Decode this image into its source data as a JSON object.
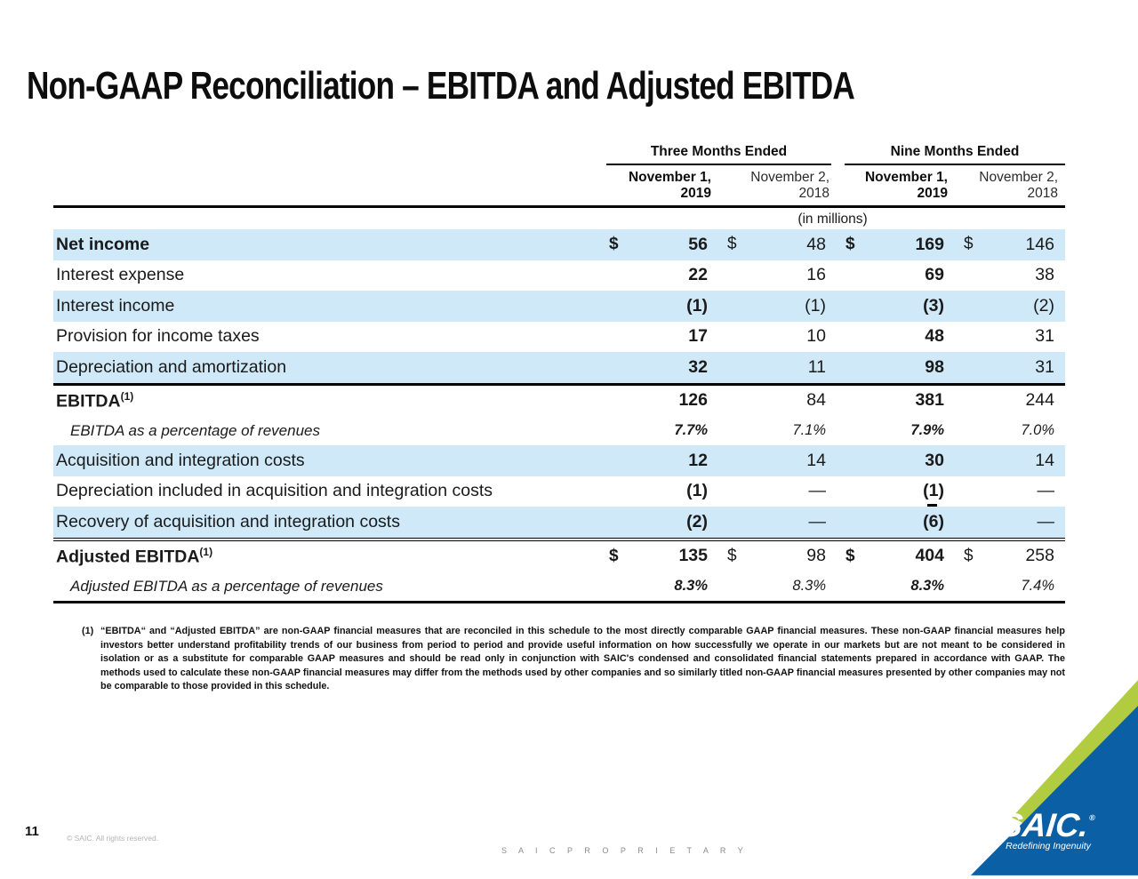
{
  "title": "Non-GAAP Reconciliation – EBITDA and Adjusted EBITDA",
  "table": {
    "group_headers": [
      "Three Months Ended",
      "Nine Months Ended"
    ],
    "col_headers": [
      {
        "line1": "November 1,",
        "line2": "2019",
        "bold": true
      },
      {
        "line1": "November 2,",
        "line2": "2018",
        "bold": false
      },
      {
        "line1": "November 1,",
        "line2": "2019",
        "bold": true
      },
      {
        "line1": "November 2,",
        "line2": "2018",
        "bold": false
      }
    ],
    "units_note": "(in millions)",
    "rows": [
      {
        "label": "Net income",
        "bold": true,
        "shade": true,
        "cells": [
          "$",
          "56",
          "$",
          "48",
          "$",
          "169",
          "$",
          "146"
        ]
      },
      {
        "label": "Interest expense",
        "cells": [
          "",
          "22",
          "",
          "16",
          "",
          "69",
          "",
          "38"
        ]
      },
      {
        "label": "Interest income",
        "shade": true,
        "cells": [
          "",
          "(1)",
          "",
          "(1)",
          "",
          "(3)",
          "",
          "(2)"
        ]
      },
      {
        "label": "Provision for income taxes",
        "cells": [
          "",
          "17",
          "",
          "10",
          "",
          "48",
          "",
          "31"
        ]
      },
      {
        "label": "Depreciation and amortization",
        "shade": true,
        "cells": [
          "",
          "32",
          "",
          "11",
          "",
          "98",
          "",
          "31"
        ]
      },
      {
        "label": "EBITDA",
        "sup": "(1)",
        "bold": true,
        "rule_above": "thick",
        "cells": [
          "",
          "126",
          "",
          "84",
          "",
          "381",
          "",
          "244"
        ]
      },
      {
        "label": "EBITDA as a percentage of revenues",
        "italic": true,
        "cells": [
          "",
          "7.7%",
          "",
          "7.1%",
          "",
          "7.9%",
          "",
          "7.0%"
        ]
      },
      {
        "label": "Acquisition and integration costs",
        "shade": true,
        "cells": [
          "",
          "12",
          "",
          "14",
          "",
          "30",
          "",
          "14"
        ]
      },
      {
        "label": "Depreciation included in acquisition and integration costs",
        "artifact": true,
        "cells": [
          "",
          "(1)",
          "",
          "—",
          "",
          "(1)",
          "",
          "—"
        ]
      },
      {
        "label": "Recovery of acquisition and integration costs",
        "shade": true,
        "cells": [
          "",
          "(2)",
          "",
          "—",
          "",
          "(6)",
          "",
          "—"
        ]
      },
      {
        "label": "Adjusted EBITDA",
        "sup": "(1)",
        "bold": true,
        "rule_above": "double",
        "cells": [
          "$",
          "135",
          "$",
          "98",
          "$",
          "404",
          "$",
          "258"
        ]
      },
      {
        "label": "Adjusted EBITDA as a percentage of revenues",
        "italic": true,
        "cells": [
          "",
          "8.3%",
          "",
          "8.3%",
          "",
          "8.3%",
          "",
          "7.4%"
        ]
      }
    ]
  },
  "footnote": {
    "marker": "(1)",
    "text": "“EBITDA“ and “Adjusted EBITDA” are non-GAAP financial measures that are reconciled in this schedule to the most directly comparable GAAP financial measures. These non-GAAP financial measures help investors better understand profitability trends of our business from period to period and provide useful information on how successfully we operate in our markets but are not meant to be considered in isolation or as a substitute for comparable GAAP measures and should be read only in conjunction with SAIC's condensed and consolidated financial statements prepared in accordance with GAAP. The methods used to calculate these non-GAAP financial measures may differ from the methods used by other companies and so similarly titled non-GAAP financial measures presented by other companies may not be comparable to those provided in this schedule."
  },
  "footer": {
    "page_number": "11",
    "copyright": "© SAIC. All rights reserved.",
    "proprietary": "S A I C   P R O P R I E T A R Y"
  },
  "logo": {
    "name": "SAIC.",
    "registered": "®",
    "tagline": "Redefining Ingenuity",
    "green": "#b2cc42",
    "blue": "#0b5fa5"
  },
  "colors": {
    "row_shade": "#cfe9f8",
    "rule": "#000000"
  }
}
